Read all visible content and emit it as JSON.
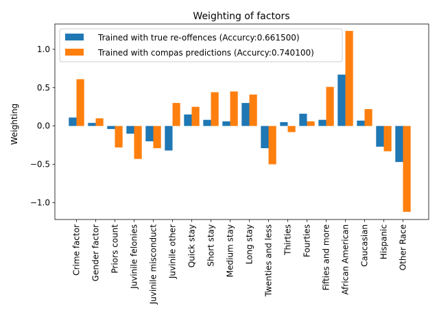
{
  "chart_data": {
    "type": "bar",
    "title": "Weighting of factors",
    "xlabel": "",
    "ylabel": "Weighting",
    "ylim": [
      -1.22,
      1.33
    ],
    "yticks": [
      -1.0,
      -0.5,
      0.0,
      0.5,
      1.0
    ],
    "ytick_labels": [
      "−1.0",
      "−0.5",
      "0.0",
      "0.5",
      "1.0"
    ],
    "legend_position": "top-left",
    "categories": [
      "Crime factor",
      "Gender factor",
      "Priors count",
      "Juvinile felonies",
      "Juvinile misconduct",
      "Juvinile other",
      "Quick stay",
      "Short stay",
      "Medium stay",
      "Long stay",
      "Twenties and less",
      "Thirties",
      "Fourties",
      "Fifties and more",
      "African American",
      "Caucasian",
      "Hispanic",
      "Other Race"
    ],
    "series": [
      {
        "name": "Trained with true re-offences (Accurcy:0.661500)",
        "color": "#1f77b4",
        "values": [
          0.11,
          0.04,
          -0.04,
          -0.1,
          -0.2,
          -0.32,
          0.15,
          0.08,
          0.06,
          0.3,
          -0.29,
          0.05,
          0.16,
          0.08,
          0.67,
          0.07,
          -0.27,
          -0.47
        ]
      },
      {
        "name": "Trained with compas predictions (Accurcy:0.740100)",
        "color": "#ff7f0e",
        "values": [
          0.61,
          0.1,
          -0.28,
          -0.43,
          -0.29,
          0.3,
          0.25,
          0.44,
          0.45,
          0.41,
          -0.5,
          -0.08,
          0.06,
          0.51,
          1.24,
          0.22,
          -0.33,
          -1.12
        ]
      }
    ]
  }
}
